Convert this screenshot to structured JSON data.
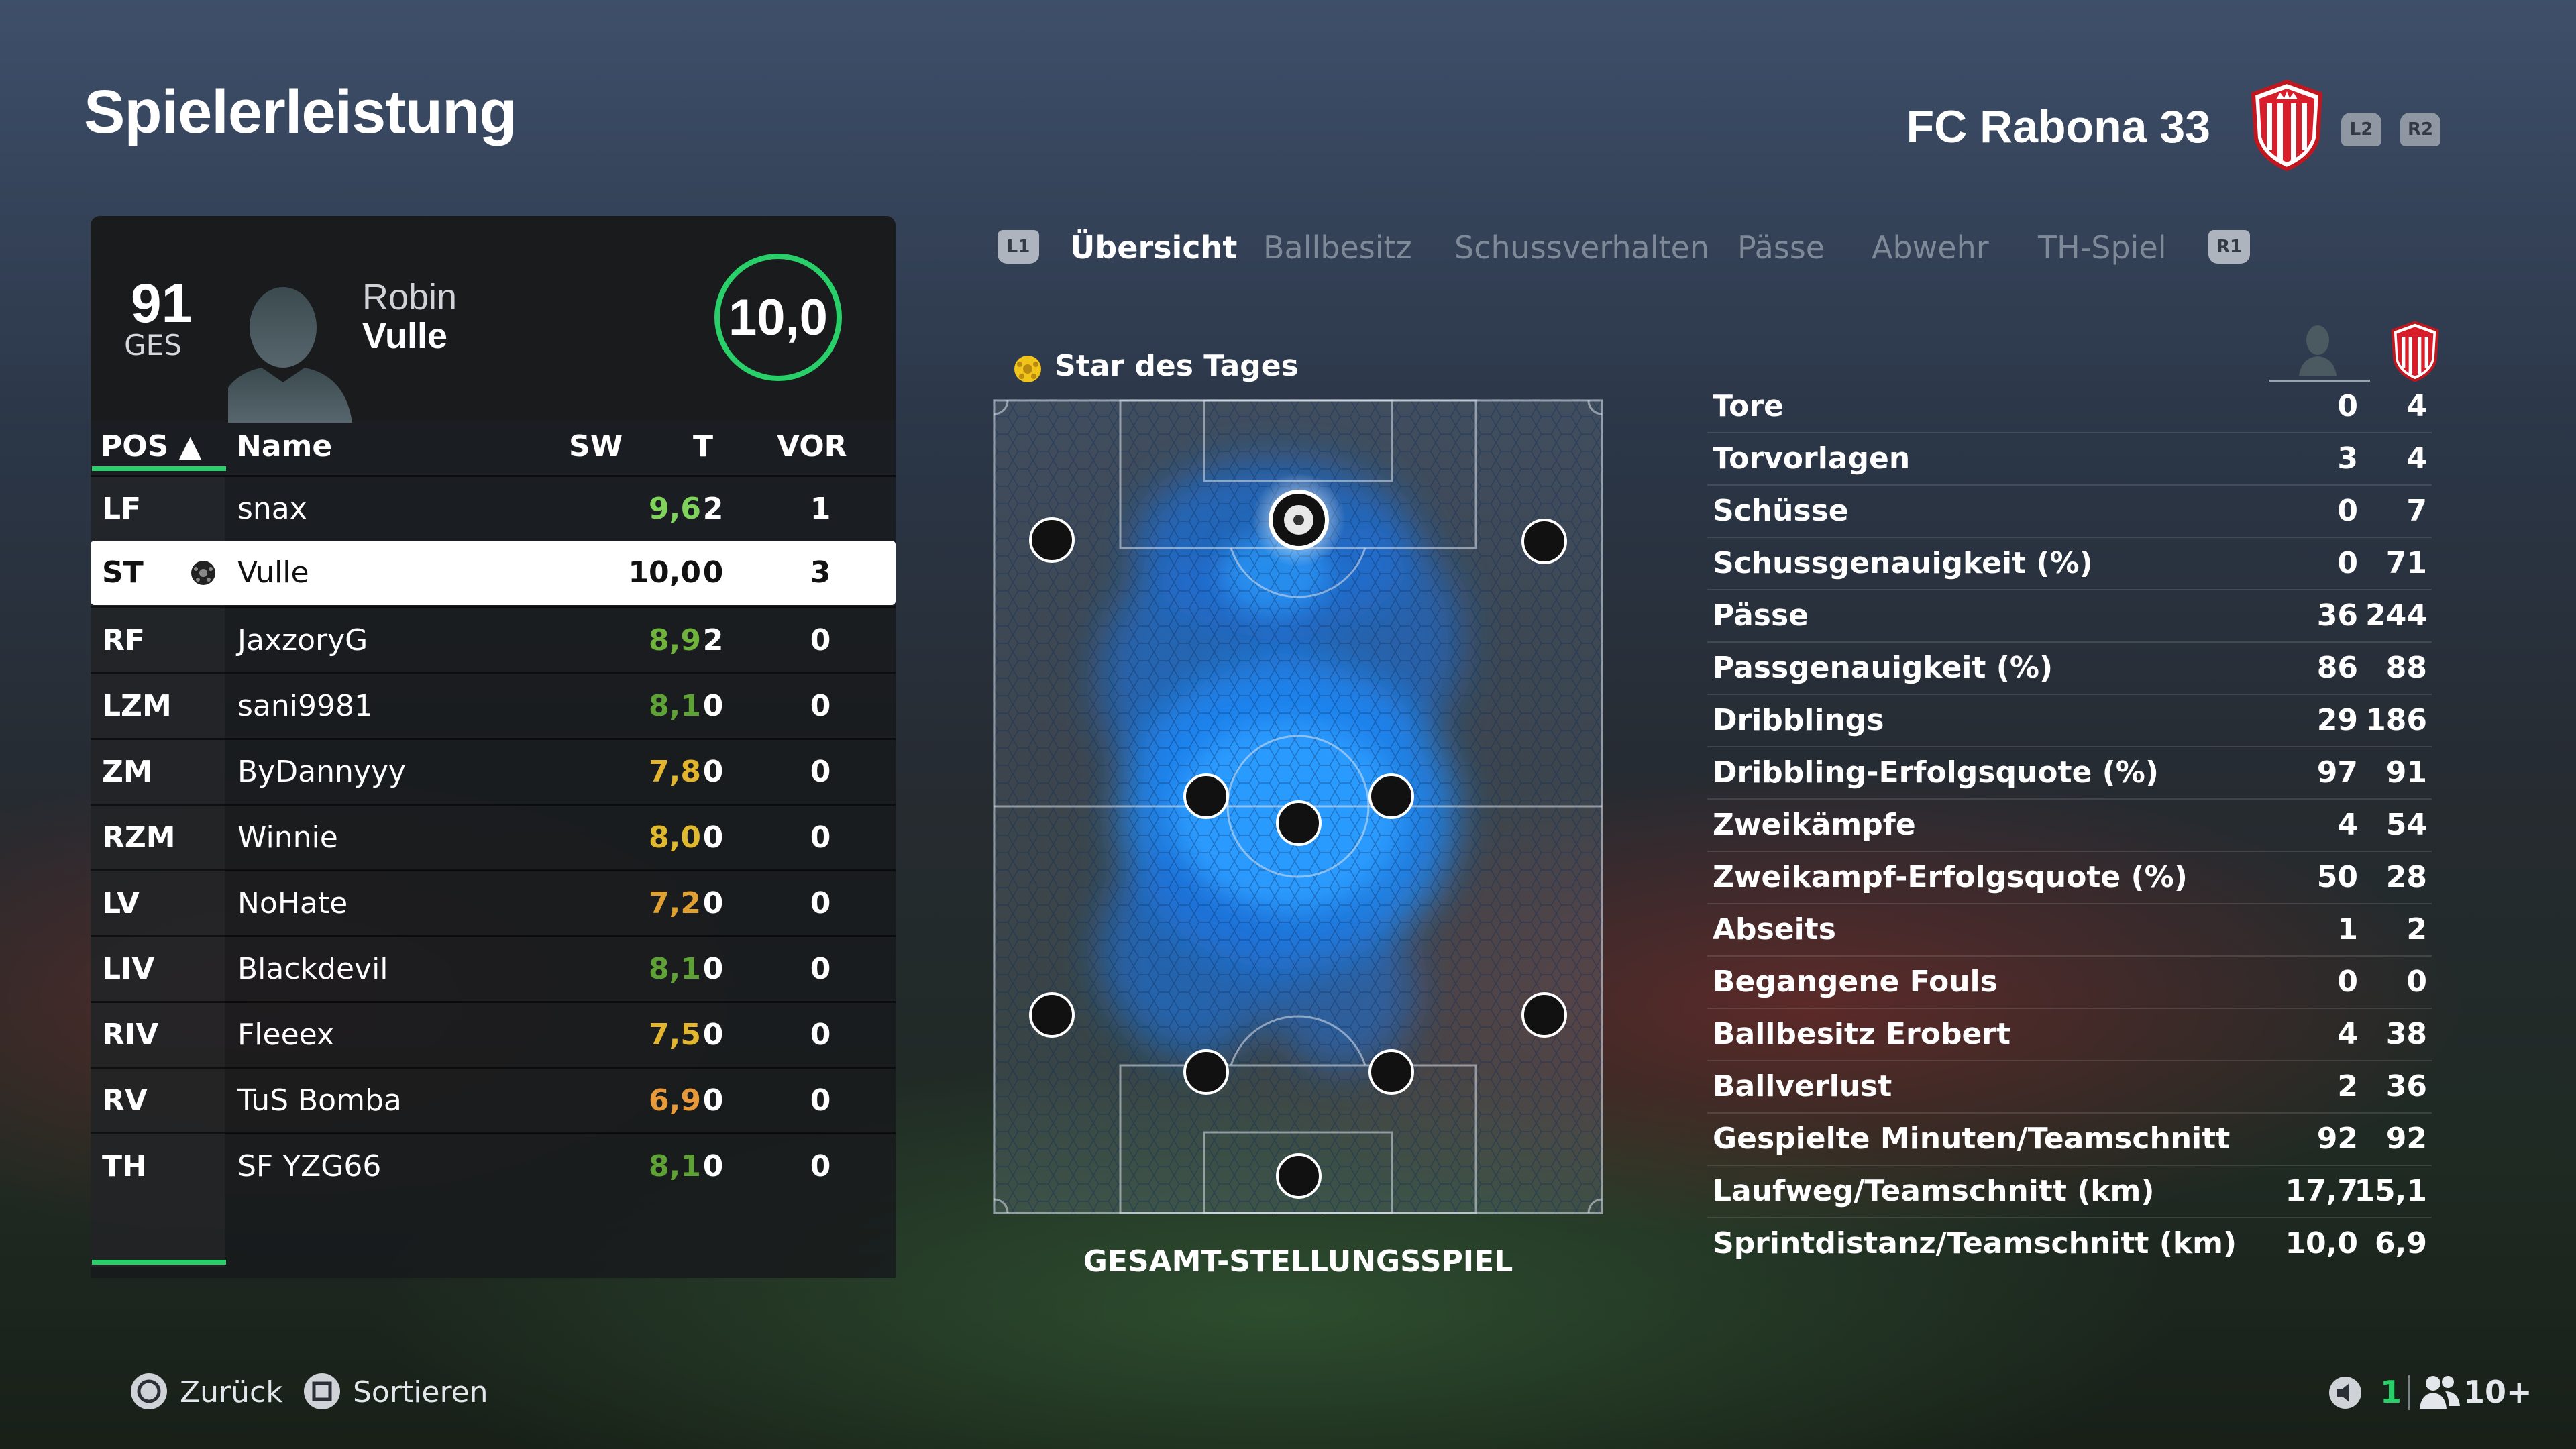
{
  "header": {
    "title": "Spielerleistung",
    "club_name": "FC Rabona 33",
    "l2": "L2",
    "r2": "R2"
  },
  "player": {
    "overall": "91",
    "overall_label": "GES",
    "first_name": "Robin",
    "last_name": "Vulle",
    "rating": "10,0"
  },
  "table": {
    "headers": {
      "pos": "POS ▲",
      "name": "Name",
      "sw": "SW",
      "t": "T",
      "vor": "VOR"
    },
    "rows": [
      {
        "pos": "LF",
        "name": "snax",
        "sw": "9,6",
        "t": "2",
        "vor": "1",
        "color": "#7fd35a"
      },
      {
        "pos": "ST",
        "name": "Vulle",
        "sw": "10,0",
        "t": "0",
        "vor": "3",
        "color": "#111111"
      },
      {
        "pos": "RF",
        "name": "JaxzoryG",
        "sw": "8,9",
        "t": "2",
        "vor": "0",
        "color": "#6fb23c"
      },
      {
        "pos": "LZM",
        "name": "sani9981",
        "sw": "8,1",
        "t": "0",
        "vor": "0",
        "color": "#5ea236"
      },
      {
        "pos": "ZM",
        "name": "ByDannyyy",
        "sw": "7,8",
        "t": "0",
        "vor": "0",
        "color": "#e3b52e"
      },
      {
        "pos": "RZM",
        "name": "Winnie",
        "sw": "8,0",
        "t": "0",
        "vor": "0",
        "color": "#e0b92f"
      },
      {
        "pos": "LV",
        "name": "NoHate",
        "sw": "7,2",
        "t": "0",
        "vor": "0",
        "color": "#e0a032"
      },
      {
        "pos": "LIV",
        "name": "Blackdevil",
        "sw": "8,1",
        "t": "0",
        "vor": "0",
        "color": "#5ea236"
      },
      {
        "pos": "RIV",
        "name": "Fleeex",
        "sw": "7,5",
        "t": "0",
        "vor": "0",
        "color": "#e3b52e"
      },
      {
        "pos": "RV",
        "name": "TuS Bomba",
        "sw": "6,9",
        "t": "0",
        "vor": "0",
        "color": "#e89a3a"
      },
      {
        "pos": "TH",
        "name": "SF YZG66",
        "sw": "8,1",
        "t": "0",
        "vor": "0",
        "color": "#5ea236"
      }
    ]
  },
  "tabs": {
    "l1": "L1",
    "r1": "R1",
    "items": [
      "Übersicht",
      "Ballbesitz",
      "Schussverhalten",
      "Pässe",
      "Abwehr",
      "TH-Spiel"
    ]
  },
  "pitch": {
    "star_label": "Star des Tages",
    "caption": "GESAMT-STELLUNGSSPIEL"
  },
  "stats": [
    {
      "label": "Tore",
      "player": "0",
      "team": "4"
    },
    {
      "label": "Torvorlagen",
      "player": "3",
      "team": "4"
    },
    {
      "label": "Schüsse",
      "player": "0",
      "team": "7"
    },
    {
      "label": "Schussgenauigkeit (%)",
      "player": "0",
      "team": "71"
    },
    {
      "label": "Pässe",
      "player": "36",
      "team": "244"
    },
    {
      "label": "Passgenauigkeit (%)",
      "player": "86",
      "team": "88"
    },
    {
      "label": "Dribblings",
      "player": "29",
      "team": "186"
    },
    {
      "label": "Dribbling-Erfolgsquote (%)",
      "player": "97",
      "team": "91"
    },
    {
      "label": "Zweikämpfe",
      "player": "4",
      "team": "54"
    },
    {
      "label": "Zweikampf-Erfolgsquote (%)",
      "player": "50",
      "team": "28"
    },
    {
      "label": "Abseits",
      "player": "1",
      "team": "2"
    },
    {
      "label": "Begangene Fouls",
      "player": "0",
      "team": "0"
    },
    {
      "label": "Ballbesitz Erobert",
      "player": "4",
      "team": "38"
    },
    {
      "label": "Ballverlust",
      "player": "2",
      "team": "36"
    },
    {
      "label": "Gespielte Minuten/Teamschnitt",
      "player": "92",
      "team": "92"
    },
    {
      "label": "Laufweg/Teamschnitt (km)",
      "player": "17,7",
      "team": "15,1"
    },
    {
      "label": "Sprintdistanz/Teamschnitt (km)",
      "player": "10,0",
      "team": "6,9"
    }
  ],
  "footer": {
    "back": "Zurück",
    "sort": "Sortieren",
    "voice_count": "1",
    "players_count": "10+"
  },
  "colors": {
    "accent_green": "#29d06a",
    "heatmap_blue": "#1f8fff",
    "crest_red": "#d81e2a"
  }
}
